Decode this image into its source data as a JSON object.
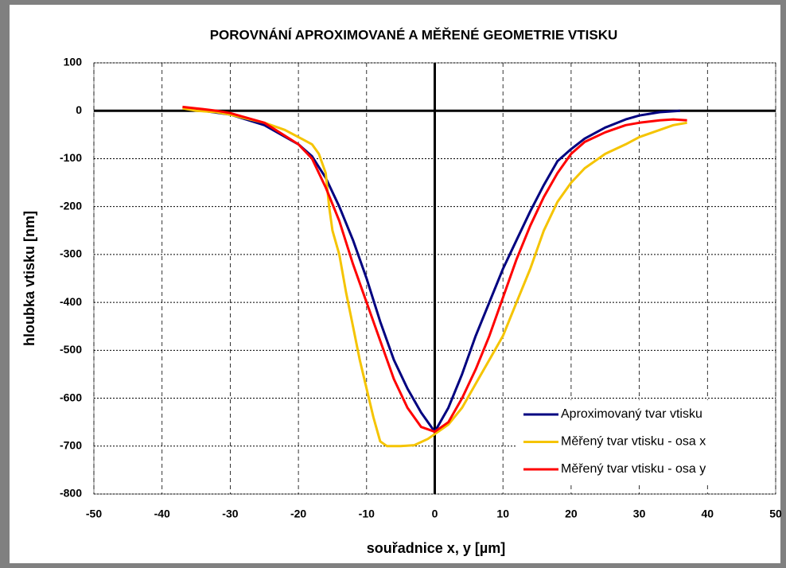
{
  "chart_data": {
    "type": "line",
    "title": "POROVNÁNÍ APROXIMOVANÉ A MĚŘENÉ GEOMETRIE VTISKU",
    "x_label": "souřadnice x, y [µm]",
    "y_label": "hloubka vtisku [nm]",
    "xlim": [
      -50,
      50
    ],
    "xticks": [
      -50,
      -40,
      -30,
      -20,
      -10,
      0,
      10,
      20,
      30,
      40,
      50
    ],
    "ylim": [
      -800,
      100
    ],
    "yticks": [
      -800,
      -700,
      -600,
      -500,
      -400,
      -300,
      -200,
      -100,
      0,
      100
    ],
    "grid": true,
    "legend": "lower right",
    "series": [
      {
        "name": "Aproximovaný tvar vtisku",
        "color": "#000080",
        "x": [
          -35,
          -30,
          -25,
          -20,
          -18,
          -16,
          -14,
          -12,
          -10,
          -8,
          -6,
          -4,
          -2,
          0,
          2,
          4,
          6,
          8,
          10,
          12,
          14,
          16,
          18,
          20,
          22,
          25,
          28,
          30,
          33,
          36
        ],
        "values": [
          2,
          -8,
          -30,
          -70,
          -95,
          -140,
          -200,
          -270,
          -350,
          -440,
          -520,
          -580,
          -630,
          -670,
          -620,
          -550,
          -470,
          -400,
          -330,
          -270,
          -210,
          -155,
          -105,
          -80,
          -58,
          -35,
          -18,
          -10,
          -3,
          0
        ]
      },
      {
        "name": "Měřený tvar vtisku - osa x",
        "color": "#F5C400",
        "x": [
          -37,
          -35,
          -32,
          -30,
          -28,
          -25,
          -22,
          -20,
          -18,
          -17,
          -16,
          -15.5,
          -15,
          -14,
          -13,
          -12,
          -11,
          -10,
          -9,
          -8,
          -7,
          -5,
          -3,
          -1,
          0,
          2,
          4,
          6,
          8,
          10,
          12,
          14,
          16,
          18,
          20,
          22,
          25,
          28,
          30,
          33,
          35,
          37
        ],
        "values": [
          5,
          0,
          -3,
          -8,
          -15,
          -25,
          -40,
          -55,
          -70,
          -90,
          -130,
          -200,
          -250,
          -300,
          -380,
          -450,
          -520,
          -580,
          -640,
          -690,
          -700,
          -700,
          -698,
          -685,
          -675,
          -655,
          -620,
          -570,
          -520,
          -470,
          -400,
          -330,
          -250,
          -190,
          -150,
          -120,
          -90,
          -70,
          -55,
          -40,
          -30,
          -25
        ]
      },
      {
        "name": "Měřený tvar vtisku - osa y",
        "color": "#FF0000",
        "x": [
          -37,
          -35,
          -32,
          -30,
          -25,
          -20,
          -18,
          -16,
          -14,
          -12,
          -10,
          -8,
          -6,
          -4,
          -2,
          0,
          2,
          4,
          6,
          8,
          10,
          12,
          14,
          16,
          18,
          20,
          22,
          25,
          28,
          30,
          33,
          35,
          37
        ],
        "values": [
          8,
          5,
          0,
          -5,
          -25,
          -70,
          -100,
          -160,
          -230,
          -320,
          -400,
          -480,
          -560,
          -620,
          -660,
          -670,
          -650,
          -600,
          -540,
          -470,
          -390,
          -310,
          -240,
          -180,
          -130,
          -90,
          -65,
          -45,
          -30,
          -25,
          -20,
          -18,
          -20
        ]
      }
    ]
  }
}
